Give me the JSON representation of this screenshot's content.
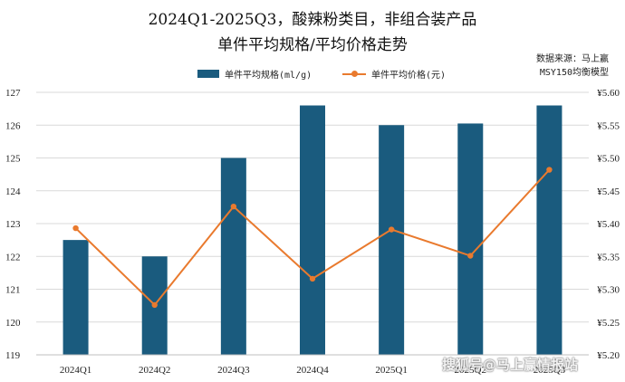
{
  "chart_data": {
    "type": "bar+line",
    "title_line1": "2024Q1-2025Q3，酸辣粉类目，非组合装产品",
    "title_line2": "单件平均规格/平均价格走势",
    "source_line1": "数据来源：马上赢",
    "source_line2": "MSY150均衡模型",
    "categories": [
      "2024Q1",
      "2024Q2",
      "2024Q3",
      "2024Q4",
      "2025Q1",
      "2025Q2",
      "2025Q3"
    ],
    "series": [
      {
        "name": "单件平均规格(ml/g)",
        "type": "bar",
        "axis": "left",
        "color": "#1a5b7e",
        "values": [
          122.5,
          122.0,
          125.0,
          126.6,
          126.0,
          126.05,
          126.6
        ]
      },
      {
        "name": "单件平均价格(元)",
        "type": "line",
        "axis": "right",
        "color": "#e97a2e",
        "values": [
          5.393,
          5.276,
          5.426,
          5.316,
          5.391,
          5.351,
          5.482
        ]
      }
    ],
    "left_axis": {
      "min": 119,
      "max": 127,
      "step": 1,
      "tick_labels": [
        "119",
        "120",
        "121",
        "122",
        "123",
        "124",
        "125",
        "126",
        "127"
      ]
    },
    "right_axis": {
      "min": 5.2,
      "max": 5.6,
      "step": 0.05,
      "tick_labels": [
        "¥5.20",
        "¥5.25",
        "¥5.30",
        "¥5.35",
        "¥5.40",
        "¥5.45",
        "¥5.50",
        "¥5.55",
        "¥5.60"
      ]
    },
    "grid": "horizontal",
    "legend_position": "top"
  },
  "watermark": "搜狐号@马上赢情报站"
}
